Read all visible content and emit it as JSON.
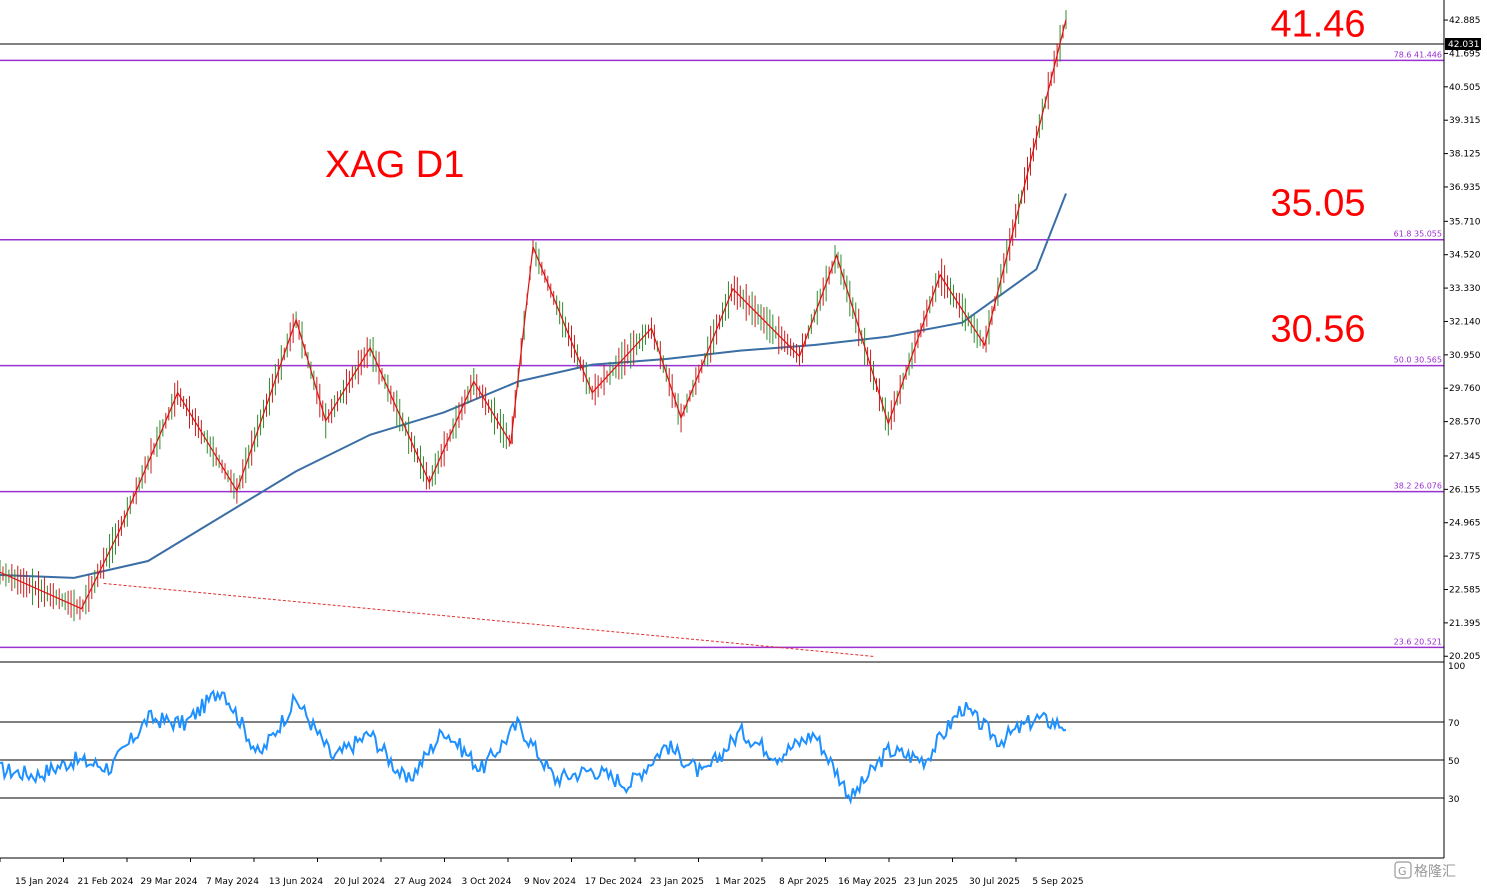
{
  "chart_data": [
    {
      "type": "line",
      "title": "XAG D1",
      "main_pane": true,
      "y_axis_ticks": [
        42.885,
        41.695,
        40.505,
        39.315,
        38.125,
        36.935,
        35.71,
        34.52,
        33.33,
        32.14,
        30.95,
        29.76,
        28.57,
        27.345,
        26.155,
        24.965,
        23.775,
        22.585,
        21.395,
        20.205
      ],
      "y_axis_tick_labels": [
        "42.885",
        "41.695",
        "40.505",
        "39.315",
        "38.125",
        "36.935",
        "35.710",
        "34.520",
        "33.330",
        "32.140",
        "30.950",
        "29.760",
        "28.570",
        "27.345",
        "26.155",
        "24.965",
        "23.775",
        "22.585",
        "21.395",
        "20.205"
      ],
      "ylim": [
        20.0,
        43.6
      ],
      "x_axis_labels": [
        "15 Jan 2024",
        "21 Feb 2024",
        "29 Mar 2024",
        "7 May 2024",
        "13 Jun 2024",
        "20 Jul 2024",
        "27 Aug 2024",
        "3 Oct 2024",
        "9 Nov 2024",
        "17 Dec 2024",
        "23 Jan 2025",
        "1 Mar 2025",
        "8 Apr 2025",
        "16 May 2025",
        "23 Jun 2025",
        "30 Jul 2025",
        "5 Sep 2025"
      ],
      "current_price": 42.031,
      "current_price_label": "42.031",
      "fib_levels": [
        {
          "ratio": "78.6",
          "value": 41.446,
          "label": "78.6 41.446",
          "annotation": "41.46"
        },
        {
          "ratio": "61.8",
          "value": 35.055,
          "label": "61.8 35.055",
          "annotation": "35.05"
        },
        {
          "ratio": "50.0",
          "value": 30.565,
          "label": "50.0 30.565",
          "annotation": "30.56"
        },
        {
          "ratio": "38.2",
          "value": 26.076,
          "label": "38.2 26.076",
          "annotation": ""
        },
        {
          "ratio": "23.6",
          "value": 20.521,
          "label": "23.6 20.521",
          "annotation": ""
        }
      ],
      "zigzag": {
        "x": [
          0,
          1.1,
          1.6,
          2.4,
          3.2,
          4.0,
          4.4,
          5.0,
          5.8,
          6.4,
          6.9,
          7.2,
          8.0,
          8.8,
          9.2,
          9.9,
          10.8,
          11.3,
          12.0,
          12.7,
          13.3,
          14.4
        ],
        "y": [
          23.2,
          21.9,
          24.6,
          29.6,
          26.1,
          32.2,
          28.6,
          31.2,
          26.4,
          30.0,
          27.8,
          34.8,
          29.6,
          31.9,
          28.7,
          33.3,
          30.9,
          34.5,
          28.5,
          33.8,
          31.3,
          42.9
        ]
      },
      "moving_average": {
        "x": [
          0,
          1,
          2,
          3,
          4,
          5,
          6,
          7,
          8,
          9,
          10,
          11,
          12,
          13,
          14,
          14.4
        ],
        "y": [
          23.1,
          23.0,
          23.6,
          25.2,
          26.8,
          28.1,
          28.9,
          30.0,
          30.6,
          30.8,
          31.1,
          31.3,
          31.6,
          32.1,
          34.0,
          36.7
        ]
      },
      "trendline_dashed": {
        "x": [
          1.4,
          11.8
        ],
        "y": [
          22.8,
          20.2
        ]
      }
    },
    {
      "type": "line",
      "title": "",
      "rsi_pane": true,
      "ylim": [
        0,
        100
      ],
      "y_axis_tick_labels": [
        "100",
        "70",
        "50",
        "30"
      ],
      "levels": [
        70,
        50,
        30
      ],
      "x": [
        0,
        0.5,
        1,
        1.5,
        2,
        2.5,
        3,
        3.5,
        4,
        4.5,
        5,
        5.5,
        6,
        6.5,
        7,
        7.5,
        8,
        8.5,
        9,
        9.5,
        10,
        10.5,
        11,
        11.5,
        12,
        12.5,
        13,
        13.5,
        14,
        14.4
      ],
      "values": [
        45,
        42,
        50,
        46,
        72,
        69,
        88,
        52,
        82,
        51,
        64,
        38,
        66,
        45,
        69,
        40,
        45,
        37,
        58,
        42,
        65,
        52,
        64,
        30,
        55,
        50,
        78,
        60,
        72,
        68
      ]
    }
  ],
  "watermark": "格隆汇"
}
